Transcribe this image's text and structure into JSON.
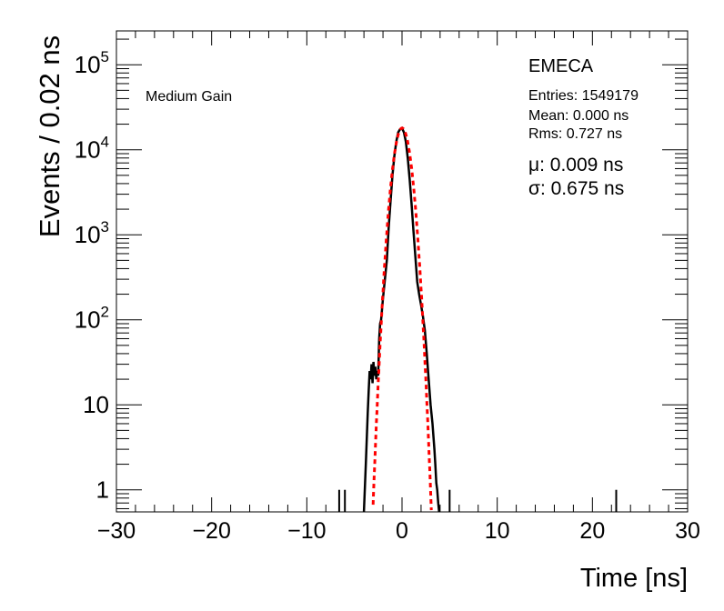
{
  "chart_data": {
    "type": "line",
    "title": "",
    "xlabel": "Time [ns]",
    "ylabel": "Events / 0.02 ns",
    "xlim": [
      -30,
      30
    ],
    "ylim": [
      0.55,
      250000
    ],
    "yscale": "log",
    "x_ticks": [
      "−30",
      "−20",
      "−10",
      "0",
      "10",
      "20",
      "30"
    ],
    "y_ticks": [
      {
        "value": 1,
        "label": "1"
      },
      {
        "value": 10,
        "label": "10"
      },
      {
        "value": 100,
        "base": "10",
        "exp": "2"
      },
      {
        "value": 1000,
        "base": "10",
        "exp": "3"
      },
      {
        "value": 10000,
        "base": "10",
        "exp": "4"
      },
      {
        "value": 100000,
        "base": "10",
        "exp": "5"
      }
    ],
    "annotation": "Medium Gain",
    "stats": {
      "title": "EMECA",
      "entries": "Entries: 1549179",
      "mean": "Mean: 0.000 ns",
      "rms": "Rms: 0.727 ns"
    },
    "fit": {
      "mu_label": "μ: 0.009 ns",
      "sigma_label": "σ: 0.675 ns",
      "mu": 0.009,
      "sigma": 0.675,
      "amplitude": 18000,
      "color": "#ff0000",
      "style": "dashed"
    },
    "series": [
      {
        "color": "#000000",
        "x": [
          -4.0,
          -3.8,
          -3.6,
          -3.5,
          -3.4,
          -3.3,
          -3.2,
          -3.1,
          -3.0,
          -2.9,
          -2.8,
          -2.7,
          -2.6,
          -2.5,
          -2.4,
          -2.3,
          -2.2,
          -2.0,
          -1.8,
          -1.6,
          -1.4,
          -1.2,
          -1.0,
          -0.8,
          -0.6,
          -0.4,
          -0.2,
          0.0,
          0.2,
          0.4,
          0.6,
          0.8,
          1.0,
          1.2,
          1.4,
          1.6,
          1.8,
          2.0,
          2.2,
          2.4,
          2.6,
          2.8,
          3.0,
          3.2,
          3.4,
          3.5,
          3.6,
          3.7,
          3.8,
          3.9
        ],
        "y": [
          0.55,
          2,
          8,
          15,
          25,
          20,
          30,
          18,
          32,
          22,
          28,
          20,
          25,
          22,
          60,
          90,
          100,
          180,
          300,
          500,
          1200,
          2500,
          5000,
          8500,
          12500,
          16000,
          17500,
          18000,
          16000,
          12500,
          8000,
          4500,
          2300,
          1100,
          550,
          280,
          200,
          150,
          110,
          75,
          40,
          20,
          10,
          6,
          3,
          2,
          1.2,
          1,
          0.7,
          0.55
        ]
      }
    ],
    "isolated_spikes": [
      {
        "x": -6.6,
        "y": 1
      },
      {
        "x": -6.0,
        "y": 1
      },
      {
        "x": 5.0,
        "y": 1
      },
      {
        "x": 22.5,
        "y": 1
      }
    ]
  }
}
